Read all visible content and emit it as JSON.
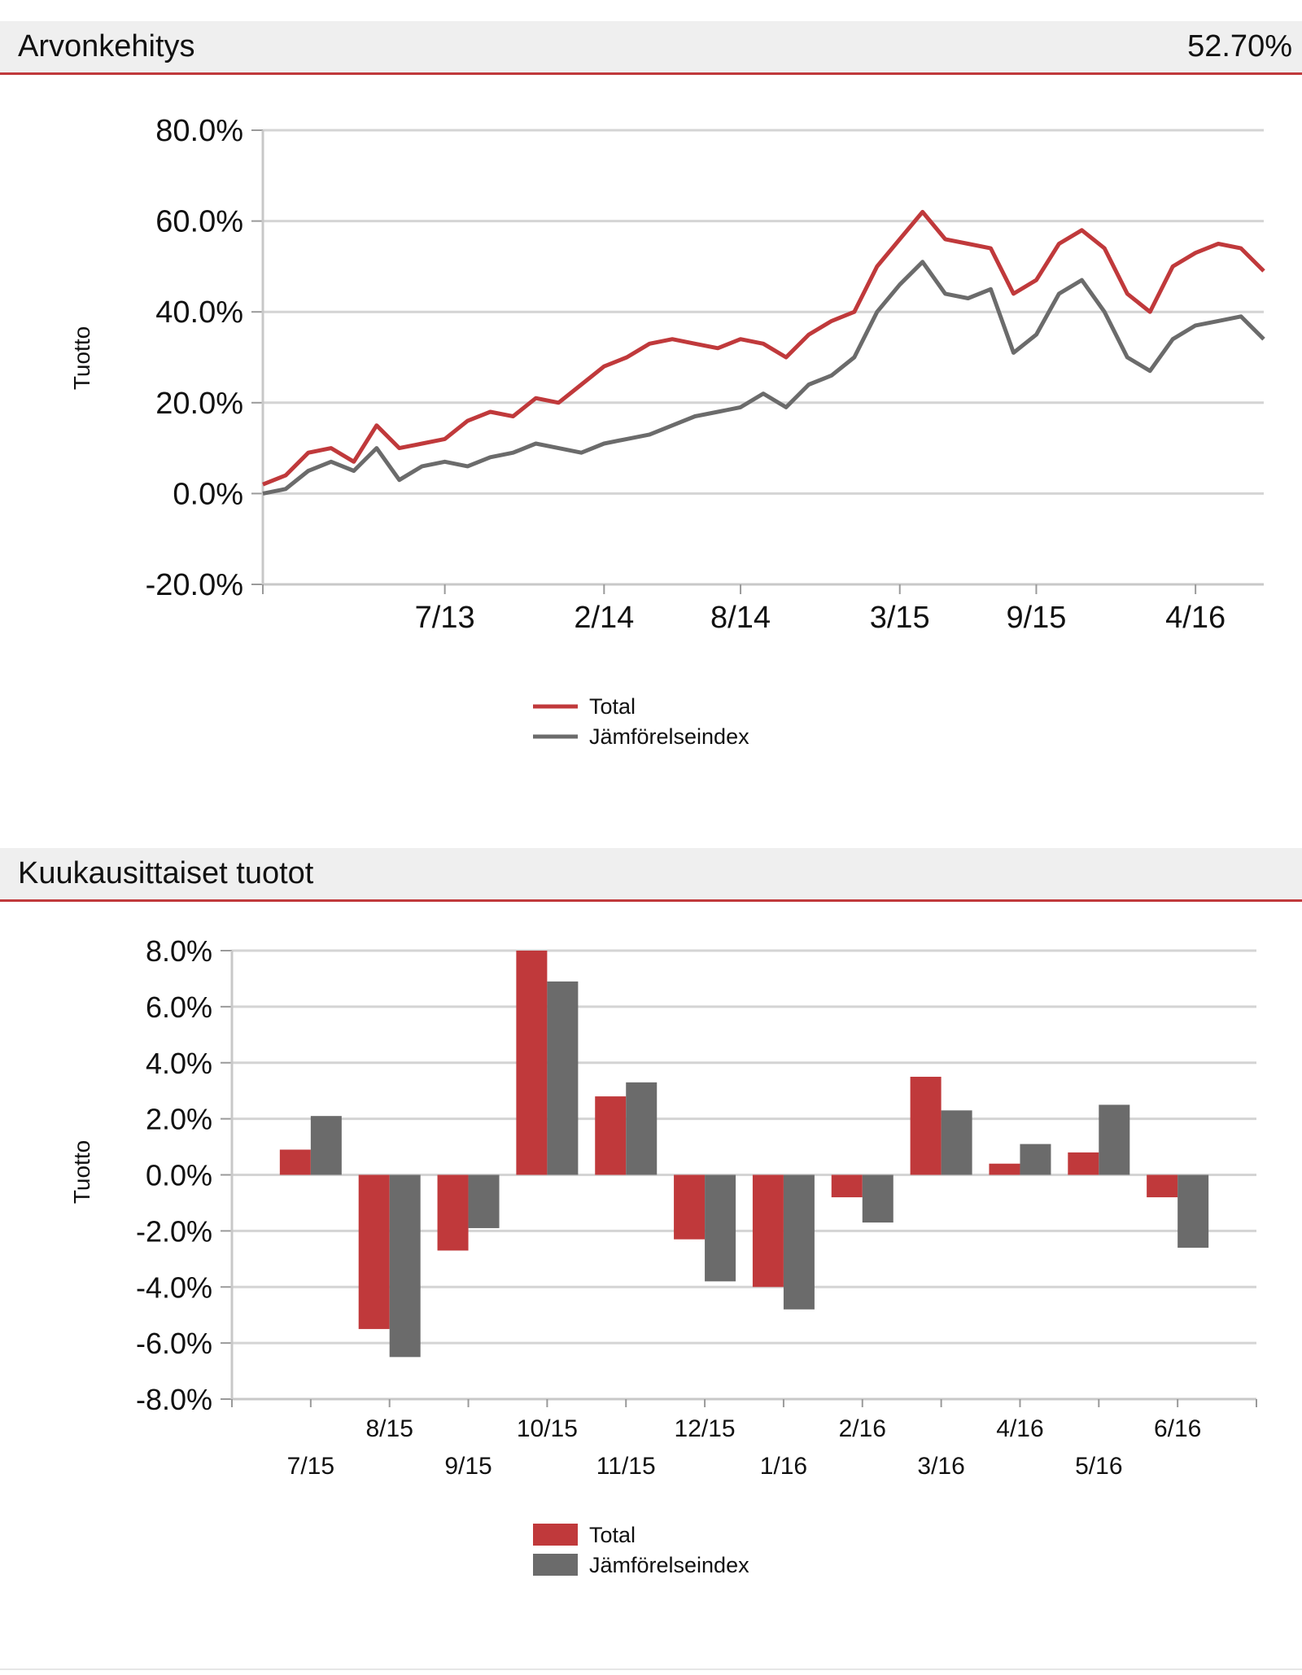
{
  "sections": {
    "performance": {
      "title": "Arvonkehitys",
      "value": "52.70%"
    },
    "monthly": {
      "title": "Kuukausittaiset tuotot"
    }
  },
  "colors": {
    "total": "#c0393b",
    "index": "#6b6b6b",
    "grid": "#d4d4d4",
    "accent": "#c0393b"
  },
  "chart_data": [
    {
      "type": "line",
      "ylabel": "Tuotto",
      "ylim": [
        -20,
        80
      ],
      "yticks": [
        "80.0%",
        "60.0%",
        "40.0%",
        "20.0%",
        "0.0%",
        "-20.0%"
      ],
      "ytick_values": [
        80,
        60,
        40,
        20,
        0,
        -20
      ],
      "x_tick_labels": [
        "7/13",
        "2/14",
        "8/14",
        "3/15",
        "9/15",
        "4/16"
      ],
      "x_tick_dates": [
        "2013-07",
        "2014-02",
        "2014-08",
        "2015-03",
        "2015-09",
        "2016-04"
      ],
      "x_range": [
        "2012-11",
        "2016-07"
      ],
      "legend": "bottom-center",
      "grid": true,
      "series": [
        {
          "name": "Total",
          "points": [
            [
              "2012-11",
              2
            ],
            [
              "2012-12",
              4
            ],
            [
              "2013-01",
              9
            ],
            [
              "2013-02",
              10
            ],
            [
              "2013-03",
              7
            ],
            [
              "2013-04",
              15
            ],
            [
              "2013-05",
              10
            ],
            [
              "2013-06",
              11
            ],
            [
              "2013-07",
              12
            ],
            [
              "2013-08",
              16
            ],
            [
              "2013-09",
              18
            ],
            [
              "2013-10",
              17
            ],
            [
              "2013-11",
              21
            ],
            [
              "2013-12",
              20
            ],
            [
              "2014-01",
              24
            ],
            [
              "2014-02",
              28
            ],
            [
              "2014-03",
              30
            ],
            [
              "2014-04",
              33
            ],
            [
              "2014-05",
              34
            ],
            [
              "2014-06",
              33
            ],
            [
              "2014-07",
              32
            ],
            [
              "2014-08",
              34
            ],
            [
              "2014-09",
              33
            ],
            [
              "2014-10",
              30
            ],
            [
              "2014-11",
              35
            ],
            [
              "2014-12",
              38
            ],
            [
              "2015-01",
              40
            ],
            [
              "2015-02",
              50
            ],
            [
              "2015-03",
              56
            ],
            [
              "2015-04",
              62
            ],
            [
              "2015-05",
              56
            ],
            [
              "2015-06",
              55
            ],
            [
              "2015-07",
              54
            ],
            [
              "2015-08",
              44
            ],
            [
              "2015-09",
              47
            ],
            [
              "2015-10",
              55
            ],
            [
              "2015-11",
              58
            ],
            [
              "2015-12",
              54
            ],
            [
              "2016-01",
              44
            ],
            [
              "2016-02",
              40
            ],
            [
              "2016-03",
              50
            ],
            [
              "2016-04",
              53
            ],
            [
              "2016-05",
              55
            ],
            [
              "2016-06",
              54
            ],
            [
              "2016-07",
              49
            ]
          ]
        },
        {
          "name": "Jämförelseindex",
          "points": [
            [
              "2012-11",
              0
            ],
            [
              "2012-12",
              1
            ],
            [
              "2013-01",
              5
            ],
            [
              "2013-02",
              7
            ],
            [
              "2013-03",
              5
            ],
            [
              "2013-04",
              10
            ],
            [
              "2013-05",
              3
            ],
            [
              "2013-06",
              6
            ],
            [
              "2013-07",
              7
            ],
            [
              "2013-08",
              6
            ],
            [
              "2013-09",
              8
            ],
            [
              "2013-10",
              9
            ],
            [
              "2013-11",
              11
            ],
            [
              "2013-12",
              10
            ],
            [
              "2014-01",
              9
            ],
            [
              "2014-02",
              11
            ],
            [
              "2014-03",
              12
            ],
            [
              "2014-04",
              13
            ],
            [
              "2014-05",
              15
            ],
            [
              "2014-06",
              17
            ],
            [
              "2014-07",
              18
            ],
            [
              "2014-08",
              19
            ],
            [
              "2014-09",
              22
            ],
            [
              "2014-10",
              19
            ],
            [
              "2014-11",
              24
            ],
            [
              "2014-12",
              26
            ],
            [
              "2015-01",
              30
            ],
            [
              "2015-02",
              40
            ],
            [
              "2015-03",
              46
            ],
            [
              "2015-04",
              51
            ],
            [
              "2015-05",
              44
            ],
            [
              "2015-06",
              43
            ],
            [
              "2015-07",
              45
            ],
            [
              "2015-08",
              31
            ],
            [
              "2015-09",
              35
            ],
            [
              "2015-10",
              44
            ],
            [
              "2015-11",
              47
            ],
            [
              "2015-12",
              40
            ],
            [
              "2016-01",
              30
            ],
            [
              "2016-02",
              27
            ],
            [
              "2016-03",
              34
            ],
            [
              "2016-04",
              37
            ],
            [
              "2016-05",
              38
            ],
            [
              "2016-06",
              39
            ],
            [
              "2016-07",
              34
            ]
          ]
        }
      ]
    },
    {
      "type": "bar",
      "ylabel": "Tuotto",
      "ylim": [
        -8,
        8
      ],
      "yticks": [
        "8.0%",
        "6.0%",
        "4.0%",
        "2.0%",
        "0.0%",
        "-2.0%",
        "-4.0%",
        "-6.0%",
        "-8.0%"
      ],
      "ytick_values": [
        8,
        6,
        4,
        2,
        0,
        -2,
        -4,
        -6,
        -8
      ],
      "categories": [
        "7/15",
        "8/15",
        "9/15",
        "10/15",
        "11/15",
        "12/15",
        "1/16",
        "2/16",
        "3/16",
        "4/16",
        "5/16",
        "6/16"
      ],
      "legend": "bottom-center",
      "grid": true,
      "series": [
        {
          "name": "Total",
          "values": [
            0.9,
            -5.5,
            -2.7,
            8.0,
            2.8,
            -2.3,
            -4.0,
            -0.8,
            3.5,
            0.4,
            0.8,
            -0.8
          ]
        },
        {
          "name": "Jämförelseindex",
          "values": [
            2.1,
            -6.5,
            -1.9,
            6.9,
            3.3,
            -3.8,
            -4.8,
            -1.7,
            2.3,
            1.1,
            2.5,
            -2.6
          ]
        }
      ]
    }
  ]
}
